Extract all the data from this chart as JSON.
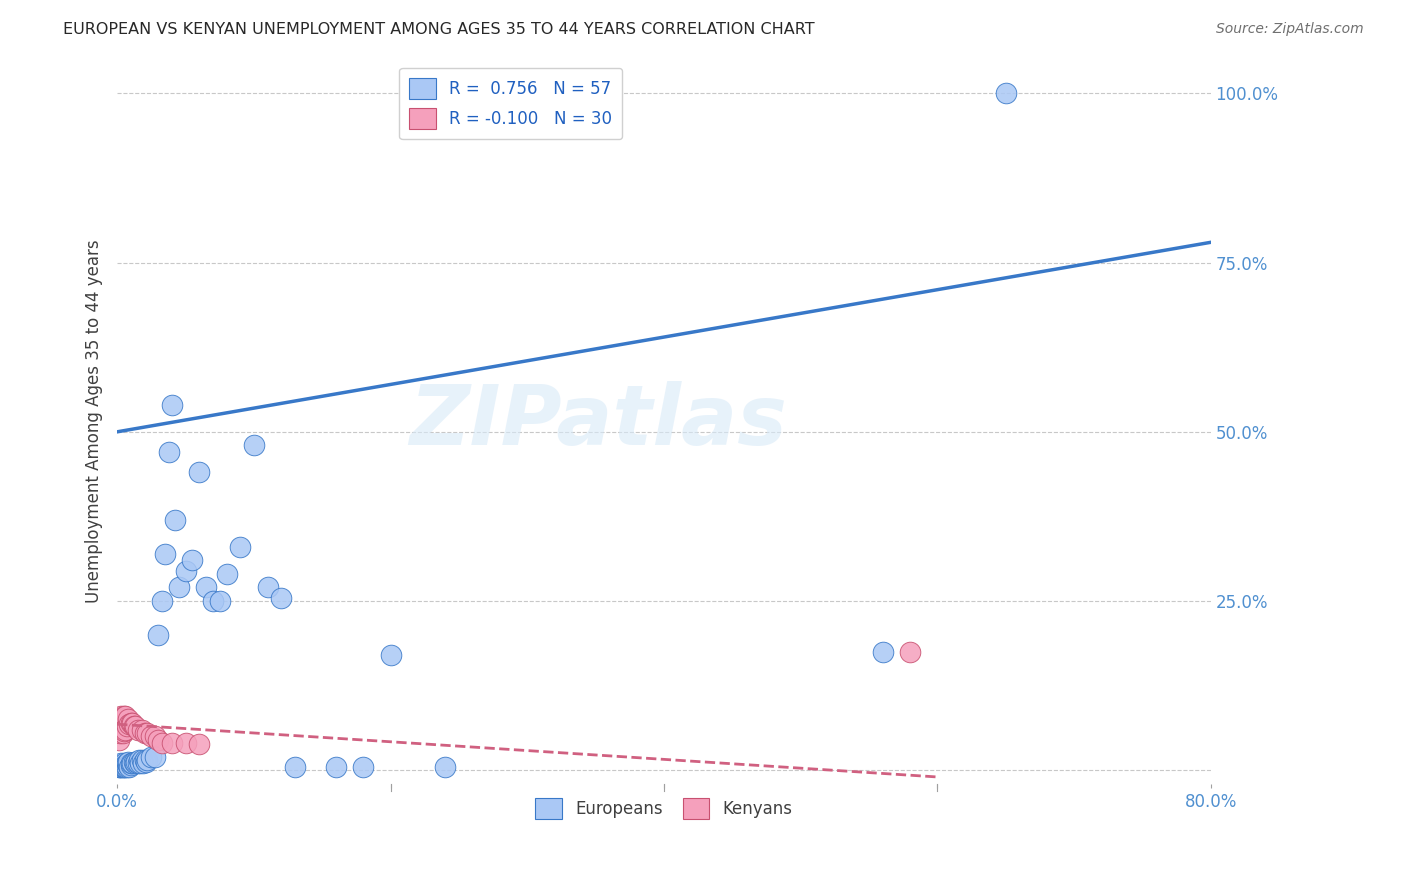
{
  "title": "EUROPEAN VS KENYAN UNEMPLOYMENT AMONG AGES 35 TO 44 YEARS CORRELATION CHART",
  "source": "Source: ZipAtlas.com",
  "ylabel": "Unemployment Among Ages 35 to 44 years",
  "xlim": [
    0.0,
    0.8
  ],
  "ylim": [
    -0.02,
    1.05
  ],
  "xticks": [
    0.0,
    0.2,
    0.4,
    0.6,
    0.8
  ],
  "yticks": [
    0.0,
    0.25,
    0.5,
    0.75,
    1.0
  ],
  "legend_european_label": "R =  0.756   N = 57",
  "legend_kenyan_label": "R = -0.100   N = 30",
  "european_color": "#aac8f5",
  "kenyan_color": "#f5a0bc",
  "trendline_european_color": "#3878c8",
  "trendline_kenyan_color": "#d06080",
  "watermark_text": "ZIPatlas",
  "eu_trend_x0": 0.0,
  "eu_trend_y0": 0.5,
  "eu_trend_x1": 0.8,
  "eu_trend_y1": 0.78,
  "ke_trend_x0": 0.0,
  "ke_trend_y0": 0.068,
  "ke_trend_x1": 0.6,
  "ke_trend_y1": -0.01,
  "european_x": [
    0.001,
    0.002,
    0.002,
    0.003,
    0.003,
    0.004,
    0.004,
    0.005,
    0.005,
    0.006,
    0.006,
    0.007,
    0.007,
    0.008,
    0.008,
    0.009,
    0.01,
    0.01,
    0.011,
    0.012,
    0.013,
    0.014,
    0.015,
    0.016,
    0.017,
    0.018,
    0.019,
    0.02,
    0.021,
    0.022,
    0.025,
    0.028,
    0.03,
    0.033,
    0.035,
    0.038,
    0.04,
    0.042,
    0.045,
    0.05,
    0.055,
    0.06,
    0.065,
    0.07,
    0.075,
    0.08,
    0.09,
    0.1,
    0.11,
    0.12,
    0.13,
    0.16,
    0.18,
    0.2,
    0.24,
    0.56,
    0.65
  ],
  "european_y": [
    0.005,
    0.005,
    0.008,
    0.005,
    0.01,
    0.005,
    0.008,
    0.005,
    0.01,
    0.005,
    0.008,
    0.005,
    0.01,
    0.008,
    0.012,
    0.005,
    0.008,
    0.01,
    0.01,
    0.012,
    0.01,
    0.012,
    0.01,
    0.015,
    0.01,
    0.015,
    0.01,
    0.015,
    0.012,
    0.015,
    0.02,
    0.02,
    0.2,
    0.25,
    0.32,
    0.47,
    0.54,
    0.37,
    0.27,
    0.295,
    0.31,
    0.44,
    0.27,
    0.25,
    0.25,
    0.29,
    0.33,
    0.48,
    0.27,
    0.255,
    0.005,
    0.005,
    0.005,
    0.17,
    0.005,
    0.175,
    1.0
  ],
  "kenyan_x": [
    0.001,
    0.002,
    0.002,
    0.003,
    0.003,
    0.004,
    0.004,
    0.005,
    0.005,
    0.006,
    0.006,
    0.007,
    0.008,
    0.009,
    0.01,
    0.011,
    0.012,
    0.013,
    0.015,
    0.018,
    0.02,
    0.022,
    0.025,
    0.028,
    0.03,
    0.033,
    0.04,
    0.05,
    0.06,
    0.58
  ],
  "kenyan_y": [
    0.045,
    0.055,
    0.075,
    0.06,
    0.08,
    0.055,
    0.075,
    0.058,
    0.08,
    0.06,
    0.08,
    0.065,
    0.075,
    0.068,
    0.07,
    0.07,
    0.065,
    0.065,
    0.06,
    0.06,
    0.055,
    0.055,
    0.05,
    0.05,
    0.045,
    0.04,
    0.04,
    0.04,
    0.038,
    0.175
  ]
}
